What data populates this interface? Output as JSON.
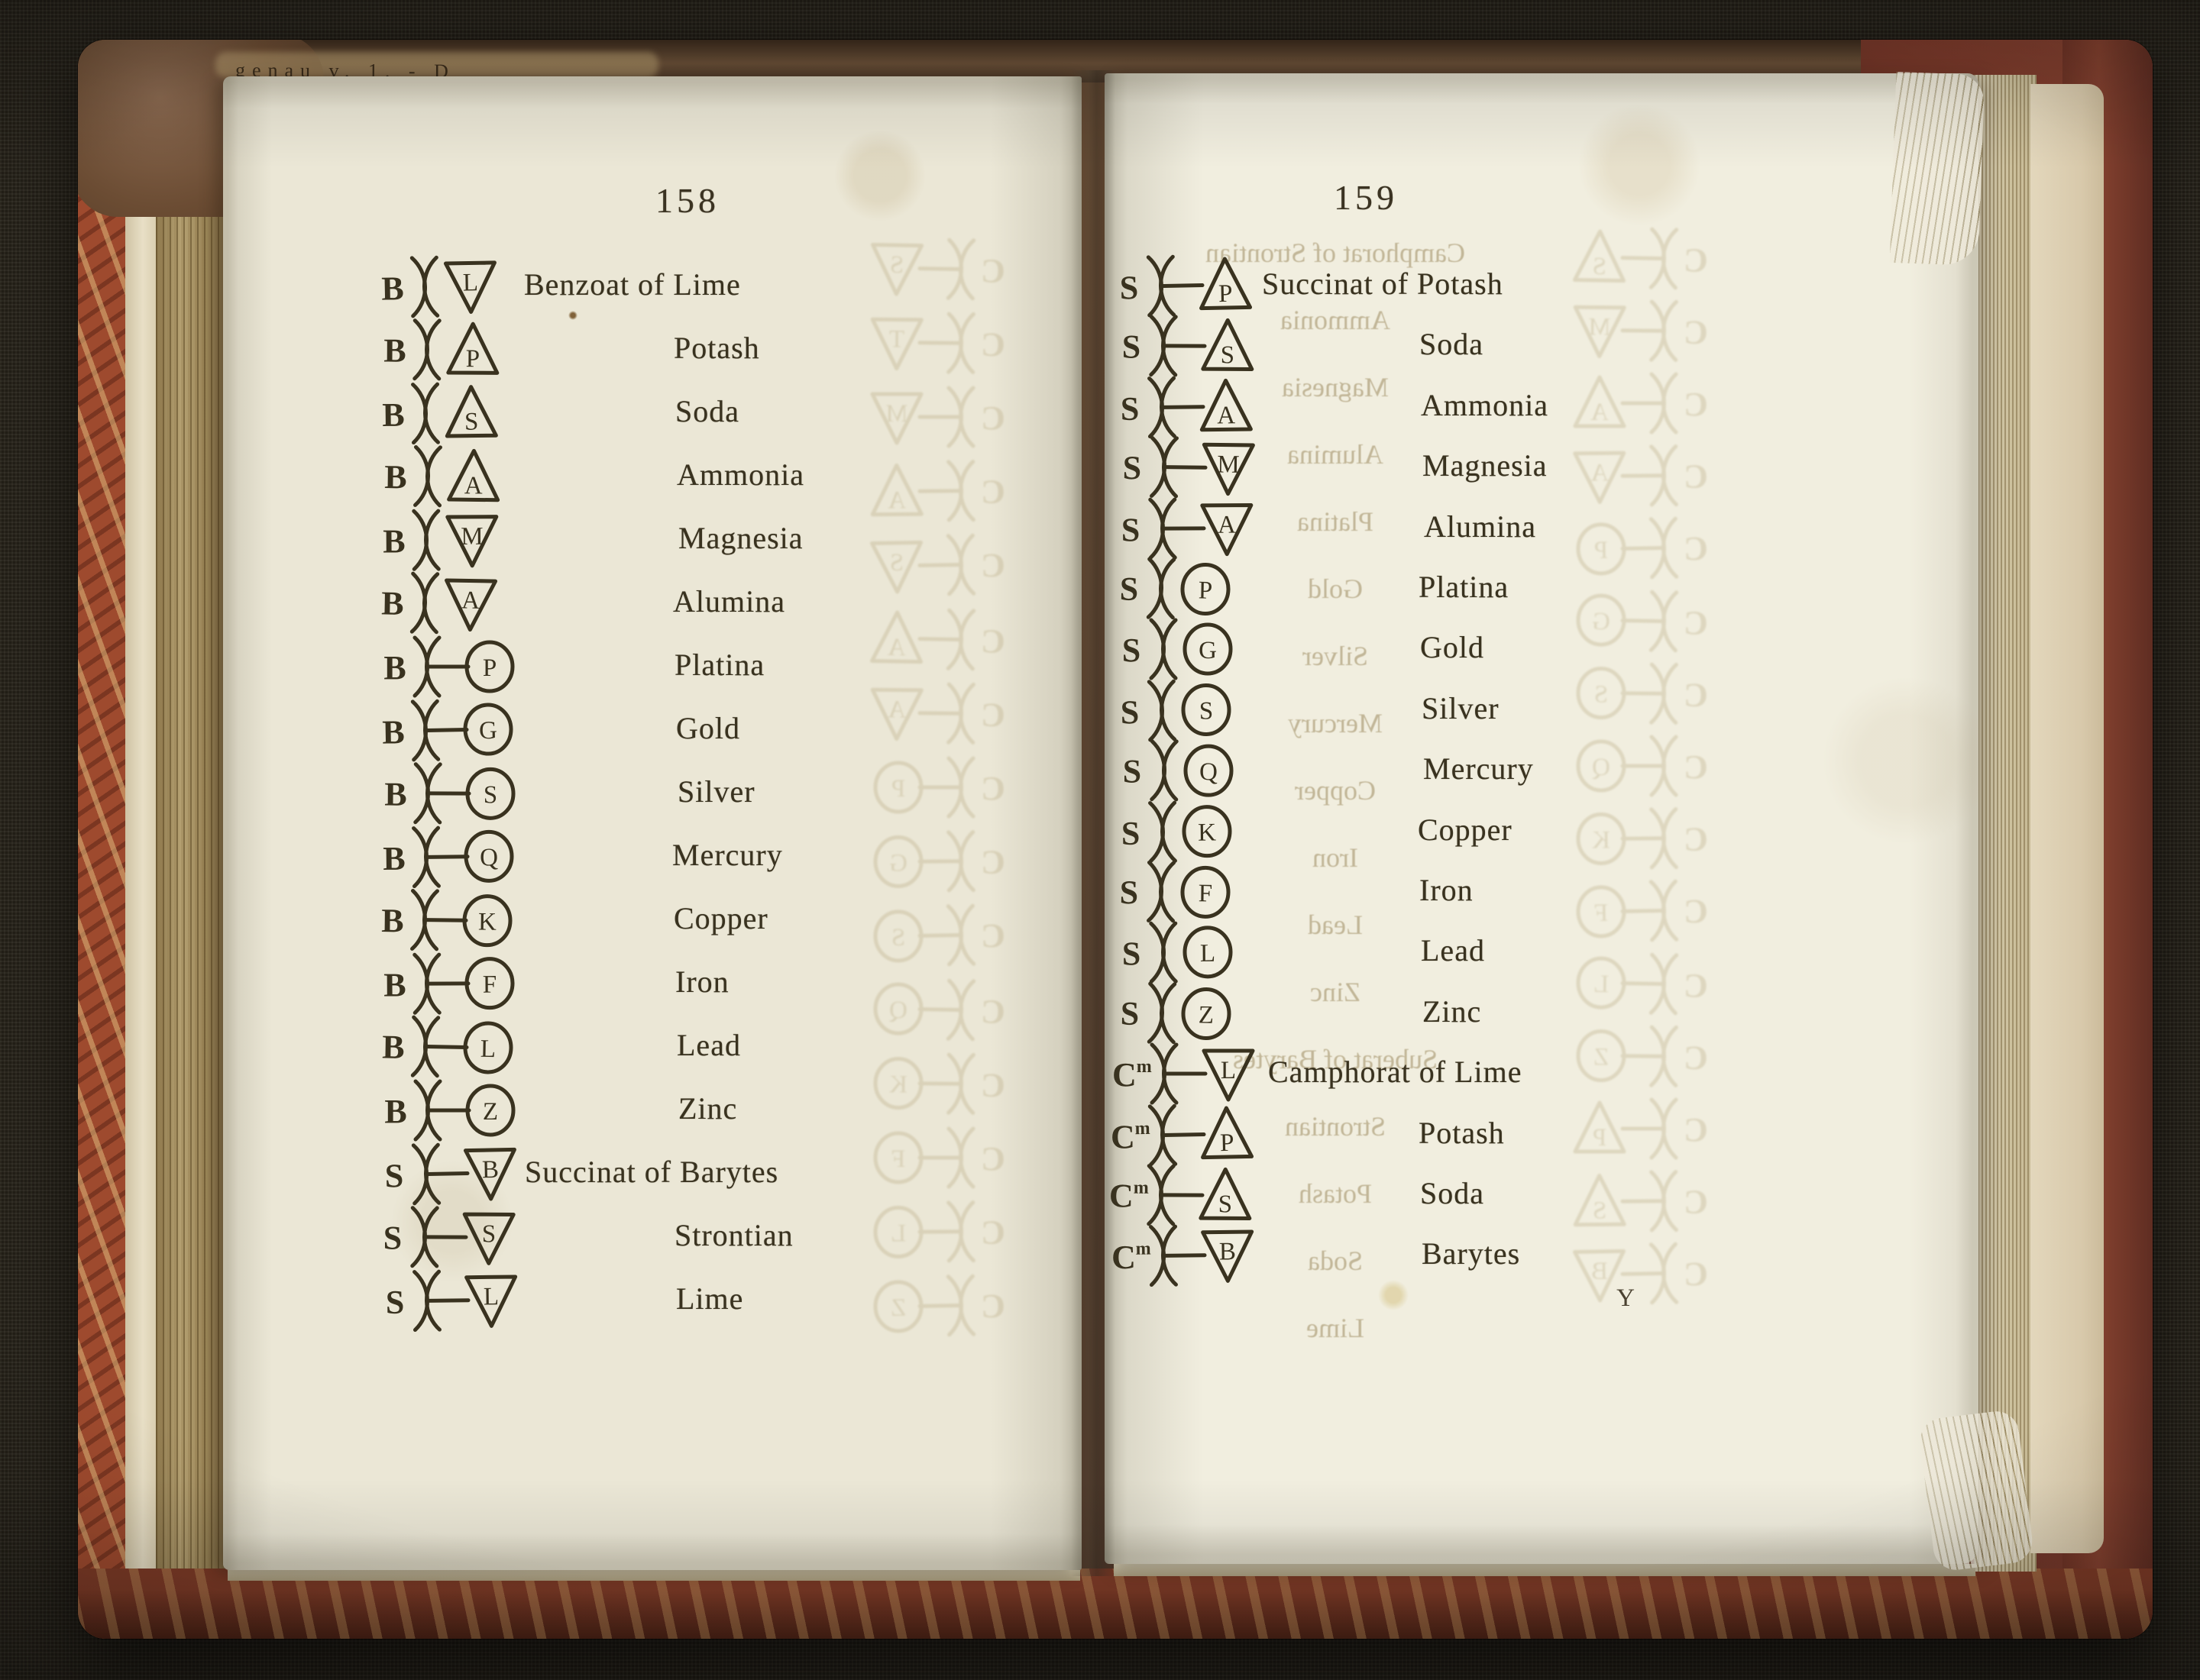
{
  "scene": {
    "type": "photograph of an open printed book of chemical symbols",
    "binding_edge_text": "genau v. 1. - D",
    "signature_mark": "Y"
  },
  "colors": {
    "background_cloth": "#262219",
    "leather_maroon": "#7a392a",
    "leather_brown": "#6b4c33",
    "marbled_cover_red": "#9e4a2e",
    "page_left_paper": "#ebe7d6",
    "page_right_paper": "#f1eedf",
    "page_edge_tan": "#ab9566",
    "ink": "#39321f",
    "bleed_through_tan": "#b2a277"
  },
  "pages": {
    "left": {
      "number": "158",
      "rows": [
        {
          "symbol": {
            "prefix": "B",
            "shape": "triangle_down",
            "letter": "L",
            "connector": false
          },
          "label": "Benzoat of Lime",
          "indent": "compound"
        },
        {
          "symbol": {
            "prefix": "B",
            "shape": "triangle_up",
            "letter": "P",
            "connector": false
          },
          "label": "Potash",
          "indent": "simple"
        },
        {
          "symbol": {
            "prefix": "B",
            "shape": "triangle_up",
            "letter": "S",
            "connector": false
          },
          "label": "Soda",
          "indent": "simple"
        },
        {
          "symbol": {
            "prefix": "B",
            "shape": "triangle_up",
            "letter": "A",
            "connector": false
          },
          "label": "Ammonia",
          "indent": "simple"
        },
        {
          "symbol": {
            "prefix": "B",
            "shape": "triangle_down",
            "letter": "M",
            "connector": false
          },
          "label": "Magnesia",
          "indent": "simple"
        },
        {
          "symbol": {
            "prefix": "B",
            "shape": "triangle_down",
            "letter": "A",
            "connector": false
          },
          "label": "Alumina",
          "indent": "simple"
        },
        {
          "symbol": {
            "prefix": "B",
            "shape": "circle",
            "letter": "P",
            "connector": true
          },
          "label": "Platina",
          "indent": "simple"
        },
        {
          "symbol": {
            "prefix": "B",
            "shape": "circle",
            "letter": "G",
            "connector": true
          },
          "label": "Gold",
          "indent": "simple"
        },
        {
          "symbol": {
            "prefix": "B",
            "shape": "circle",
            "letter": "S",
            "connector": true
          },
          "label": "Silver",
          "indent": "simple"
        },
        {
          "symbol": {
            "prefix": "B",
            "shape": "circle",
            "letter": "Q",
            "connector": true
          },
          "label": "Mercury",
          "indent": "simple"
        },
        {
          "symbol": {
            "prefix": "B",
            "shape": "circle",
            "letter": "K",
            "connector": true
          },
          "label": "Copper",
          "indent": "simple"
        },
        {
          "symbol": {
            "prefix": "B",
            "shape": "circle",
            "letter": "F",
            "connector": true
          },
          "label": "Iron",
          "indent": "simple"
        },
        {
          "symbol": {
            "prefix": "B",
            "shape": "circle",
            "letter": "L",
            "connector": true
          },
          "label": "Lead",
          "indent": "simple"
        },
        {
          "symbol": {
            "prefix": "B",
            "shape": "circle",
            "letter": "Z",
            "connector": true
          },
          "label": "Zinc",
          "indent": "simple"
        },
        {
          "symbol": {
            "prefix": "S",
            "shape": "triangle_down",
            "letter": "B",
            "connector": true
          },
          "label": "Succinat of Barytes",
          "indent": "compound"
        },
        {
          "symbol": {
            "prefix": "S",
            "shape": "triangle_down",
            "letter": "S",
            "connector": true
          },
          "label": "Strontian",
          "indent": "simple"
        },
        {
          "symbol": {
            "prefix": "S",
            "shape": "triangle_down",
            "letter": "L",
            "connector": true
          },
          "label": "Lime",
          "indent": "simple"
        }
      ]
    },
    "right": {
      "number": "159",
      "signature": "Y",
      "rows": [
        {
          "symbol": {
            "prefix": "S",
            "shape": "triangle_up",
            "letter": "P",
            "connector": true
          },
          "label": "Succinat of Potash",
          "indent": "compound"
        },
        {
          "symbol": {
            "prefix": "S",
            "shape": "triangle_up",
            "letter": "S",
            "connector": true
          },
          "label": "Soda",
          "indent": "simple"
        },
        {
          "symbol": {
            "prefix": "S",
            "shape": "triangle_up",
            "letter": "A",
            "connector": true
          },
          "label": "Ammonia",
          "indent": "simple"
        },
        {
          "symbol": {
            "prefix": "S",
            "shape": "triangle_down",
            "letter": "M",
            "connector": true
          },
          "label": "Magnesia",
          "indent": "simple"
        },
        {
          "symbol": {
            "prefix": "S",
            "shape": "triangle_down",
            "letter": "A",
            "connector": true
          },
          "label": "Alumina",
          "indent": "simple"
        },
        {
          "symbol": {
            "prefix": "S",
            "shape": "circle",
            "letter": "P",
            "connector": false
          },
          "label": "Platina",
          "indent": "simple"
        },
        {
          "symbol": {
            "prefix": "S",
            "shape": "circle",
            "letter": "G",
            "connector": false
          },
          "label": "Gold",
          "indent": "simple"
        },
        {
          "symbol": {
            "prefix": "S",
            "shape": "circle",
            "letter": "S",
            "connector": false
          },
          "label": "Silver",
          "indent": "simple"
        },
        {
          "symbol": {
            "prefix": "S",
            "shape": "circle",
            "letter": "Q",
            "connector": false
          },
          "label": "Mercury",
          "indent": "simple"
        },
        {
          "symbol": {
            "prefix": "S",
            "shape": "circle",
            "letter": "K",
            "connector": false
          },
          "label": "Copper",
          "indent": "simple"
        },
        {
          "symbol": {
            "prefix": "S",
            "shape": "circle",
            "letter": "F",
            "connector": false
          },
          "label": "Iron",
          "indent": "simple"
        },
        {
          "symbol": {
            "prefix": "S",
            "shape": "circle",
            "letter": "L",
            "connector": false
          },
          "label": "Lead",
          "indent": "simple"
        },
        {
          "symbol": {
            "prefix": "S",
            "shape": "circle",
            "letter": "Z",
            "connector": false
          },
          "label": "Zinc",
          "indent": "simple"
        },
        {
          "symbol": {
            "prefix": "Cm",
            "shape": "triangle_down",
            "letter": "L",
            "connector": true
          },
          "label": "Camphorat of Lime",
          "indent": "compound"
        },
        {
          "symbol": {
            "prefix": "Cm",
            "shape": "triangle_up",
            "letter": "P",
            "connector": true
          },
          "label": "Potash",
          "indent": "simple"
        },
        {
          "symbol": {
            "prefix": "Cm",
            "shape": "triangle_up",
            "letter": "S",
            "connector": true
          },
          "label": "Soda",
          "indent": "simple"
        },
        {
          "symbol": {
            "prefix": "Cm",
            "shape": "triangle_down",
            "letter": "B",
            "connector": true
          },
          "label": "Barytes",
          "indent": "simple"
        }
      ]
    }
  },
  "bleed_through": {
    "left_symbols": [
      {
        "prefix": "C",
        "shape": "triangle_down",
        "letter": "S",
        "connector": true
      },
      {
        "prefix": "C",
        "shape": "triangle_down",
        "letter": "T",
        "connector": true
      },
      {
        "prefix": "C",
        "shape": "triangle_down",
        "letter": "M",
        "connector": true
      },
      {
        "prefix": "C",
        "shape": "triangle_up",
        "letter": "A",
        "connector": true
      },
      {
        "prefix": "C",
        "shape": "triangle_down",
        "letter": "S",
        "connector": true
      },
      {
        "prefix": "C",
        "shape": "triangle_up",
        "letter": "A",
        "connector": true
      },
      {
        "prefix": "C",
        "shape": "triangle_down",
        "letter": "A",
        "connector": true
      },
      {
        "prefix": "C",
        "shape": "circle",
        "letter": "P",
        "connector": true
      },
      {
        "prefix": "C",
        "shape": "circle",
        "letter": "G",
        "connector": true
      },
      {
        "prefix": "C",
        "shape": "circle",
        "letter": "S",
        "connector": true
      },
      {
        "prefix": "C",
        "shape": "circle",
        "letter": "Q",
        "connector": true
      },
      {
        "prefix": "C",
        "shape": "circle",
        "letter": "K",
        "connector": true
      },
      {
        "prefix": "C",
        "shape": "circle",
        "letter": "F",
        "connector": true
      },
      {
        "prefix": "C",
        "shape": "circle",
        "letter": "L",
        "connector": true
      },
      {
        "prefix": "C",
        "shape": "circle",
        "letter": "Z",
        "connector": true
      }
    ],
    "right_words": [
      "Camphorat of Strontian",
      "Ammonia",
      "Magnesia",
      "Alumina",
      "Platina",
      "Gold",
      "Silver",
      "Mercury",
      "Copper",
      "Iron",
      "Lead",
      "Zinc",
      "Suberat of Barytes",
      "Strontian",
      "Potash",
      "Soda",
      "Lime"
    ],
    "right_symbols": [
      {
        "prefix": "C",
        "shape": "triangle_up",
        "letter": "S",
        "connector": true
      },
      {
        "prefix": "C",
        "shape": "triangle_down",
        "letter": "M",
        "connector": true
      },
      {
        "prefix": "C",
        "shape": "triangle_up",
        "letter": "A",
        "connector": true
      },
      {
        "prefix": "C",
        "shape": "triangle_down",
        "letter": "A",
        "connector": true
      },
      {
        "prefix": "C",
        "shape": "circle",
        "letter": "P",
        "connector": true
      },
      {
        "prefix": "C",
        "shape": "circle",
        "letter": "G",
        "connector": true
      },
      {
        "prefix": "C",
        "shape": "circle",
        "letter": "S",
        "connector": true
      },
      {
        "prefix": "C",
        "shape": "circle",
        "letter": "Q",
        "connector": true
      },
      {
        "prefix": "C",
        "shape": "circle",
        "letter": "K",
        "connector": true
      },
      {
        "prefix": "C",
        "shape": "circle",
        "letter": "F",
        "connector": true
      },
      {
        "prefix": "C",
        "shape": "circle",
        "letter": "L",
        "connector": true
      },
      {
        "prefix": "C",
        "shape": "circle",
        "letter": "Z",
        "connector": true
      },
      {
        "prefix": "C",
        "shape": "triangle_up",
        "letter": "P",
        "connector": true
      },
      {
        "prefix": "C",
        "shape": "triangle_up",
        "letter": "S",
        "connector": true
      },
      {
        "prefix": "C",
        "shape": "triangle_down",
        "letter": "B",
        "connector": true
      }
    ]
  }
}
